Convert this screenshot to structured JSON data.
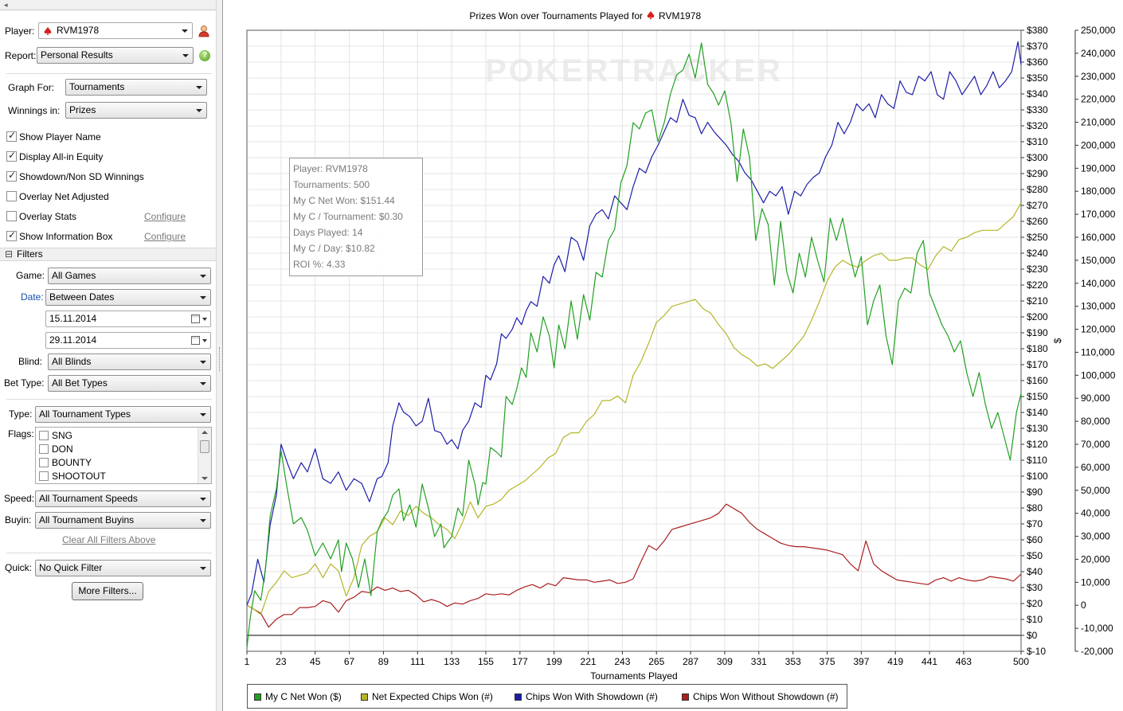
{
  "sidebar": {
    "topbar_glyph": "◂",
    "player_label": "Player:",
    "player_value": "RVM1978",
    "report_label": "Report:",
    "report_value": "Personal Results",
    "graph_for_label": "Graph For:",
    "graph_for_value": "Tournaments",
    "winnings_in_label": "Winnings in:",
    "winnings_in_value": "Prizes",
    "options": [
      {
        "label": "Show Player Name",
        "checked": true
      },
      {
        "label": "Display All-in Equity",
        "checked": true
      },
      {
        "label": "Showdown/Non SD Winnings",
        "checked": true
      },
      {
        "label": "Overlay Net Adjusted",
        "checked": false
      },
      {
        "label": "Overlay Stats",
        "checked": false,
        "link": "Configure"
      },
      {
        "label": "Show Information Box",
        "checked": true,
        "link": "Configure"
      }
    ],
    "filters_title": "Filters",
    "filters_toggle": "⊟",
    "game_label": "Game:",
    "game_value": "All Games",
    "date_label": "Date:",
    "date_value": "Between Dates",
    "date_from": "15.11.2014",
    "date_to": "29.11.2014",
    "blind_label": "Blind:",
    "blind_value": "All Blinds",
    "bet_type_label": "Bet Type:",
    "bet_type_value": "All Bet Types",
    "type_label": "Type:",
    "type_value": "All Tournament Types",
    "flags_label": "Flags:",
    "flags": [
      "SNG",
      "DON",
      "BOUNTY",
      "SHOOTOUT"
    ],
    "speed_label": "Speed:",
    "speed_value": "All Tournament Speeds",
    "buyin_label": "Buyin:",
    "buyin_value": "All Tournament Buyins",
    "clear_filters": "Clear All Filters Above",
    "quick_label": "Quick:",
    "quick_value": "No Quick Filter",
    "more_filters": "More Filters...",
    "help_glyph": "?"
  },
  "chart_data": {
    "type": "line",
    "title": "Prizes Won over Tournaments Played for",
    "title_player": "RVM1978",
    "watermark": "POKERTRACKER",
    "xlabel": "Tournaments Played",
    "ylabel_right": "$",
    "xticks": [
      "1",
      "23",
      "45",
      "67",
      "89",
      "111",
      "133",
      "155",
      "177",
      "199",
      "221",
      "243",
      "265",
      "287",
      "309",
      "331",
      "353",
      "375",
      "397",
      "419",
      "441",
      "463",
      "500"
    ],
    "xlim": [
      1,
      500
    ],
    "ylim_dollars": [
      -10,
      380
    ],
    "ylim_chips": [
      -20000,
      250000
    ],
    "yticks_dollars": [
      "$-10",
      "$0",
      "$10",
      "$20",
      "$30",
      "$40",
      "$50",
      "$60",
      "$70",
      "$80",
      "$90",
      "$100",
      "$110",
      "$120",
      "$130",
      "$140",
      "$150",
      "$160",
      "$170",
      "$180",
      "$190",
      "$200",
      "$210",
      "$220",
      "$230",
      "$240",
      "$250",
      "$260",
      "$270",
      "$280",
      "$290",
      "$300",
      "$310",
      "$320",
      "$330",
      "$340",
      "$350",
      "$360",
      "$370",
      "$380"
    ],
    "yticks_chips": [
      "-20,000",
      "-10,000",
      "0",
      "10,000",
      "20,000",
      "30,000",
      "40,000",
      "50,000",
      "60,000",
      "70,000",
      "80,000",
      "90,000",
      "100,000",
      "110,000",
      "120,000",
      "130,000",
      "140,000",
      "150,000",
      "160,000",
      "170,000",
      "180,000",
      "190,000",
      "200,000",
      "210,000",
      "220,000",
      "230,000",
      "240,000",
      "250,000"
    ],
    "grid": true,
    "legend_position": "bottom",
    "series": [
      {
        "name": "My C Net Won ($)",
        "axis": "dollars",
        "color": "#22a022",
        "x": [
          1,
          3,
          6,
          10,
          13,
          16,
          20,
          23,
          27,
          31,
          36,
          40,
          45,
          50,
          55,
          60,
          62,
          65,
          69,
          73,
          77,
          81,
          85,
          88,
          92,
          95,
          99,
          102,
          106,
          110,
          114,
          118,
          122,
          126,
          128,
          130,
          133,
          137,
          140,
          144,
          148,
          150,
          153,
          155,
          158,
          162,
          165,
          168,
          172,
          175,
          178,
          181,
          184,
          188,
          192,
          196,
          199,
          202,
          206,
          210,
          214,
          218,
          222,
          226,
          230,
          234,
          238,
          242,
          246,
          250,
          254,
          258,
          262,
          266,
          270,
          274,
          278,
          282,
          286,
          290,
          294,
          298,
          302,
          305,
          309,
          313,
          317,
          321,
          325,
          329,
          333,
          337,
          341,
          345,
          349,
          353,
          357,
          361,
          365,
          369,
          373,
          377,
          381,
          385,
          389,
          393,
          397,
          401,
          405,
          409,
          413,
          417,
          421,
          425,
          429,
          433,
          437,
          441,
          445,
          449,
          453,
          457,
          461,
          465,
          469,
          473,
          477,
          481,
          485,
          489,
          493,
          497,
          500
        ],
        "values": [
          -8,
          10,
          28,
          22,
          42,
          75,
          92,
          116,
          92,
          70,
          74,
          66,
          50,
          58,
          48,
          60,
          40,
          58,
          48,
          30,
          48,
          25,
          65,
          72,
          78,
          88,
          92,
          72,
          82,
          68,
          95,
          80,
          62,
          70,
          55,
          58,
          62,
          80,
          75,
          110,
          95,
          82,
          96,
          95,
          118,
          115,
          112,
          150,
          145,
          155,
          168,
          162,
          190,
          178,
          200,
          188,
          168,
          195,
          180,
          210,
          186,
          214,
          198,
          228,
          225,
          248,
          255,
          284,
          295,
          322,
          318,
          328,
          330,
          310,
          322,
          340,
          352,
          355,
          365,
          350,
          372,
          346,
          340,
          333,
          342,
          322,
          285,
          318,
          300,
          248,
          268,
          258,
          220,
          260,
          228,
          215,
          240,
          225,
          250,
          235,
          222,
          262,
          248,
          262,
          242,
          225,
          238,
          195,
          210,
          220,
          188,
          170,
          210,
          218,
          215,
          240,
          248,
          215,
          205,
          195,
          188,
          178,
          185,
          165,
          150,
          165,
          145,
          130,
          140,
          125,
          110,
          140,
          152
        ],
        "end": 152
      },
      {
        "name": "Net Expected Chips Won (#)",
        "axis": "chips",
        "color": "#b5b52a",
        "x": [
          1,
          5,
          10,
          15,
          20,
          25,
          30,
          35,
          40,
          45,
          50,
          55,
          60,
          65,
          70,
          75,
          80,
          85,
          90,
          95,
          100,
          105,
          110,
          115,
          120,
          125,
          130,
          135,
          140,
          145,
          150,
          155,
          160,
          165,
          170,
          175,
          180,
          185,
          190,
          195,
          200,
          205,
          210,
          215,
          220,
          225,
          230,
          235,
          240,
          245,
          250,
          255,
          260,
          265,
          270,
          275,
          280,
          285,
          290,
          295,
          300,
          305,
          310,
          315,
          320,
          325,
          330,
          335,
          340,
          345,
          350,
          355,
          360,
          365,
          370,
          375,
          380,
          385,
          390,
          395,
          400,
          405,
          410,
          415,
          420,
          425,
          430,
          435,
          440,
          445,
          450,
          455,
          460,
          465,
          470,
          475,
          480,
          485,
          490,
          495,
          500
        ],
        "values": [
          0,
          -1500,
          -4000,
          6000,
          10000,
          15000,
          12000,
          13000,
          14000,
          18000,
          12000,
          18000,
          15000,
          4000,
          12000,
          26000,
          30000,
          32000,
          38000,
          35000,
          41000,
          39000,
          43000,
          40000,
          38000,
          35000,
          33000,
          29000,
          36000,
          45000,
          38000,
          43000,
          44000,
          46000,
          50000,
          52000,
          54000,
          57000,
          60000,
          64000,
          66000,
          73000,
          75000,
          75000,
          80000,
          83000,
          89000,
          89000,
          91000,
          88000,
          100000,
          106000,
          114000,
          123000,
          126000,
          130000,
          131000,
          132000,
          133000,
          129000,
          127000,
          122000,
          118000,
          112000,
          109000,
          107000,
          104000,
          105000,
          103000,
          106000,
          109000,
          113000,
          117000,
          124000,
          132000,
          141000,
          147000,
          150000,
          148000,
          147000,
          150000,
          152000,
          153000,
          150000,
          150000,
          151000,
          151000,
          148000,
          146000,
          152000,
          156000,
          154000,
          159000,
          160000,
          162000,
          163000,
          163000,
          163000,
          166000,
          169000,
          175000
        ],
        "end": 175000
      },
      {
        "name": "Chips Won With Showdown (#)",
        "axis": "chips",
        "color": "#1d1da8",
        "x": [
          1,
          4,
          8,
          12,
          16,
          20,
          23,
          27,
          31,
          36,
          40,
          45,
          50,
          55,
          60,
          65,
          70,
          75,
          80,
          85,
          88,
          92,
          95,
          99,
          102,
          106,
          110,
          114,
          118,
          122,
          126,
          130,
          133,
          137,
          140,
          144,
          148,
          152,
          155,
          158,
          162,
          165,
          168,
          172,
          175,
          178,
          181,
          184,
          188,
          192,
          196,
          199,
          202,
          206,
          210,
          214,
          218,
          222,
          226,
          230,
          234,
          238,
          242,
          246,
          250,
          254,
          258,
          262,
          266,
          270,
          274,
          278,
          282,
          286,
          290,
          294,
          298,
          302,
          306,
          310,
          314,
          318,
          322,
          326,
          330,
          334,
          338,
          342,
          346,
          350,
          354,
          358,
          362,
          366,
          370,
          374,
          378,
          382,
          386,
          390,
          394,
          398,
          402,
          406,
          410,
          414,
          418,
          422,
          426,
          430,
          434,
          438,
          442,
          446,
          450,
          454,
          458,
          462,
          466,
          470,
          474,
          478,
          482,
          486,
          490,
          494,
          498,
          500
        ],
        "values": [
          0,
          5000,
          20000,
          10000,
          35000,
          48000,
          70000,
          62000,
          55000,
          62000,
          58000,
          68000,
          55000,
          53000,
          58000,
          50000,
          55000,
          53000,
          45000,
          55000,
          56000,
          62000,
          78000,
          88000,
          84000,
          82000,
          78000,
          80000,
          90000,
          76000,
          75000,
          70000,
          72000,
          68000,
          76000,
          80000,
          88000,
          86000,
          100000,
          98000,
          105000,
          118000,
          116000,
          120000,
          125000,
          122000,
          128000,
          132000,
          130000,
          143000,
          140000,
          148000,
          152000,
          145000,
          160000,
          158000,
          150000,
          165000,
          170000,
          172000,
          168000,
          178000,
          175000,
          172000,
          182000,
          190000,
          188000,
          195000,
          200000,
          206000,
          212000,
          210000,
          220000,
          213000,
          212000,
          205000,
          210000,
          206000,
          203000,
          200000,
          196000,
          193000,
          188000,
          185000,
          180000,
          175000,
          180000,
          178000,
          182000,
          170000,
          180000,
          178000,
          183000,
          186000,
          188000,
          195000,
          200000,
          210000,
          205000,
          210000,
          218000,
          215000,
          218000,
          212000,
          222000,
          218000,
          216000,
          228000,
          223000,
          222000,
          230000,
          228000,
          232000,
          222000,
          220000,
          232000,
          228000,
          222000,
          226000,
          230000,
          222000,
          226000,
          232000,
          225000,
          228000,
          232000,
          245000,
          235000
        ],
        "end": 235000
      },
      {
        "name": "Chips Won Without Showdown (#)",
        "axis": "chips",
        "color": "#aa1f1f",
        "x": [
          1,
          5,
          10,
          15,
          20,
          25,
          30,
          35,
          40,
          45,
          50,
          55,
          60,
          65,
          70,
          75,
          80,
          85,
          90,
          95,
          100,
          105,
          110,
          115,
          120,
          125,
          130,
          135,
          140,
          145,
          150,
          155,
          160,
          165,
          170,
          175,
          180,
          185,
          190,
          195,
          200,
          205,
          210,
          215,
          220,
          225,
          230,
          235,
          240,
          245,
          250,
          255,
          260,
          265,
          270,
          275,
          280,
          285,
          290,
          295,
          300,
          305,
          310,
          315,
          320,
          325,
          330,
          335,
          340,
          345,
          350,
          355,
          360,
          365,
          370,
          375,
          380,
          385,
          390,
          395,
          400,
          405,
          410,
          415,
          420,
          425,
          430,
          435,
          440,
          445,
          450,
          455,
          460,
          465,
          470,
          475,
          480,
          485,
          490,
          495,
          500
        ],
        "values": [
          0,
          -1500,
          -3500,
          -9500,
          -6000,
          -4000,
          -4000,
          -1000,
          -1000,
          -500,
          2000,
          1000,
          -3000,
          2000,
          3500,
          6000,
          5500,
          8000,
          6500,
          7500,
          6000,
          6500,
          4500,
          1500,
          2500,
          1500,
          -500,
          1000,
          500,
          2000,
          3000,
          5000,
          4500,
          5000,
          4500,
          6500,
          8000,
          9000,
          7500,
          9500,
          8500,
          12000,
          11500,
          11000,
          11000,
          10000,
          10500,
          11000,
          9500,
          10000,
          11500,
          19000,
          26000,
          24000,
          28000,
          33000,
          34000,
          35000,
          36000,
          37000,
          38000,
          40000,
          44000,
          42000,
          40000,
          36000,
          33000,
          31000,
          29000,
          27000,
          26000,
          25500,
          25500,
          25000,
          24500,
          24000,
          23000,
          22000,
          18000,
          15000,
          28000,
          18000,
          15000,
          13000,
          11000,
          10500,
          10000,
          9500,
          9000,
          11000,
          12000,
          10500,
          12000,
          11000,
          10500,
          11000,
          12500,
          12000,
          11500,
          10500,
          13500
        ],
        "end": 13500
      }
    ]
  },
  "infobox": {
    "lines": [
      "Player: RVM1978",
      "Tournaments: 500",
      "My C Net Won: $151.44",
      "My C / Tournament: $0.30",
      "Days Played: 14",
      "My C / Day: $10.82",
      "ROI %: 4.33"
    ]
  },
  "colors": {
    "net_won": "#22a022",
    "expected": "#b5b52a",
    "showdown": "#1d1da8",
    "no_showdown": "#aa1f1f",
    "spade_red": "#d42020"
  }
}
